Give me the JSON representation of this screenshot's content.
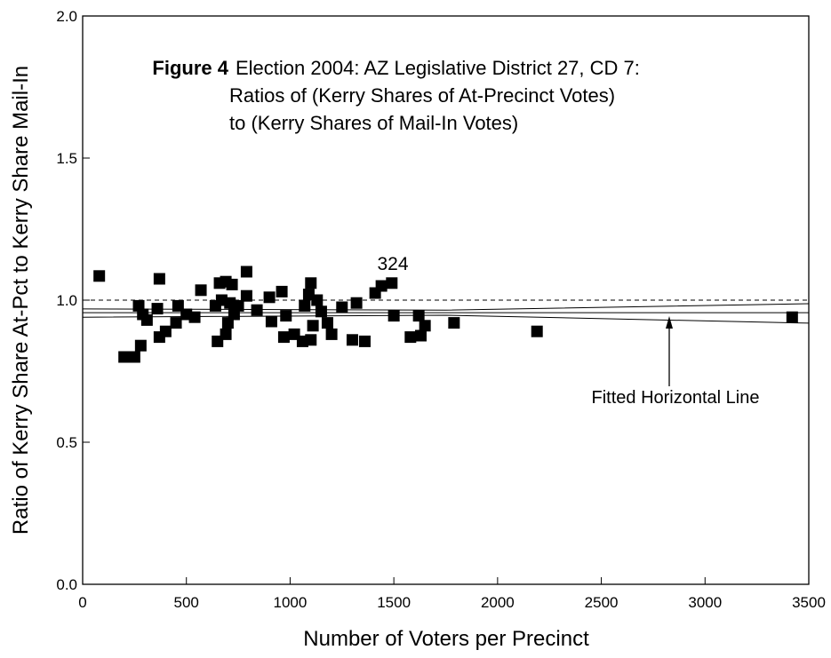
{
  "chart_data": {
    "type": "scatter",
    "title": [
      "Election 2004: AZ Legislative District 27, CD 7:",
      "Ratios of (Kerry Shares of At-Precinct Votes)",
      "to (Kerry Shares of Mail-In Votes)"
    ],
    "figure_label": "Figure 4",
    "x_label": "Number of Voters per Precinct",
    "y_label": "Ratio of Kerry Share At-Pct to Kerry Share Mail-In",
    "xlim": [
      0,
      3500
    ],
    "xticks": [
      0,
      500,
      1000,
      1500,
      2000,
      2500,
      3000,
      3500
    ],
    "ylim": [
      0,
      2
    ],
    "yticks": [
      {
        "value": 0,
        "label": "0.0"
      },
      0.5,
      {
        "value": 1,
        "label": "1.0"
      },
      1.5,
      {
        "value": 2,
        "label": "2.0"
      }
    ],
    "color": "#000000",
    "x": [
      80,
      200,
      250,
      270,
      280,
      290,
      310,
      360,
      370,
      370,
      400,
      450,
      460,
      500,
      540,
      570,
      640,
      650,
      660,
      670,
      690,
      690,
      700,
      710,
      720,
      730,
      750,
      790,
      790,
      840,
      900,
      910,
      960,
      970,
      980,
      1020,
      1060,
      1070,
      1090,
      1100,
      1100,
      1110,
      1130,
      1150,
      1180,
      1200,
      1250,
      1300,
      1320,
      1360,
      1410,
      1440,
      1490,
      1500,
      1580,
      1620,
      1630,
      1650,
      1790,
      2190,
      3420
    ],
    "values": [
      1.085,
      0.8,
      0.8,
      0.98,
      0.84,
      0.95,
      0.93,
      0.97,
      1.075,
      0.87,
      0.89,
      0.92,
      0.98,
      0.95,
      0.94,
      1.035,
      0.98,
      0.855,
      1.06,
      1.0,
      1.065,
      0.88,
      0.92,
      0.99,
      1.055,
      0.95,
      0.98,
      1.1,
      1.015,
      0.965,
      1.01,
      0.925,
      1.03,
      0.87,
      0.945,
      0.88,
      0.855,
      0.98,
      1.02,
      1.06,
      0.86,
      0.91,
      1.0,
      0.96,
      0.92,
      0.88,
      0.975,
      0.86,
      0.99,
      0.855,
      1.025,
      1.05,
      1.06,
      0.945,
      0.87,
      0.945,
      0.875,
      0.91,
      0.92,
      0.89,
      0.94
    ],
    "lines": [
      {
        "x": [
          0,
          3500
        ],
        "values": [
          1,
          1
        ],
        "dashed": true
      },
      {
        "x": [
          0,
          3500
        ],
        "values": [
          0.956,
          0.956
        ],
        "dashed": false
      },
      {
        "x": [
          0,
          1750,
          3500
        ],
        "values": [
          0.969,
          0.965,
          0.9875
        ],
        "dashed": false
      },
      {
        "x": [
          0,
          1750,
          3500
        ],
        "values": [
          0.94,
          0.947,
          0.919
        ],
        "dashed": false
      }
    ],
    "annotations": [
      "324",
      "Fitted Horizontal Line"
    ]
  }
}
